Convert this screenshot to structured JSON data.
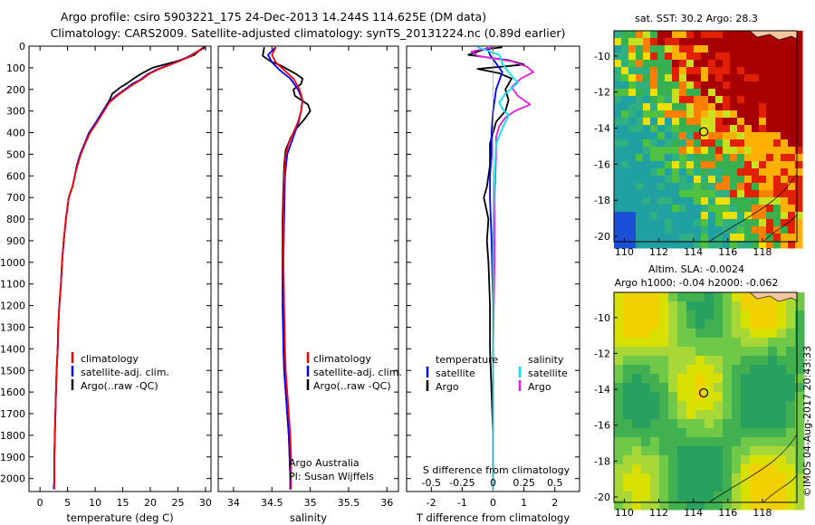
{
  "header": {
    "line1": "Argo profile: csiro 5903221_175 24-Dec-2013 14.244S 114.625E (DM data)",
    "line2": "Climatology: CARS2009. Satellite-adjusted climatology: synTS_20131224.nc (0.89d earlier)"
  },
  "footer": {
    "sidebar_label": "©IMOS 04-Aug-2017 20:43:33"
  },
  "colors": {
    "climatology": "#ff0000",
    "satellite": "#0000ff",
    "argo": "#000000",
    "t_satellite": "#0000ff",
    "t_argo": "#000000",
    "s_satellite": "#00e5ee",
    "s_argo": "#e020e0",
    "map_marker": "#000000"
  },
  "chart_data": [
    {
      "id": "temperature",
      "type": "line",
      "title": "",
      "xlabel": "temperature (deg C)",
      "ylabel": "",
      "xlim": [
        -2,
        31
      ],
      "ylim": [
        2060,
        0
      ],
      "y_inverted": true,
      "x_ticks": [
        0,
        5,
        10,
        15,
        20,
        25,
        30
      ],
      "y_ticks": [
        0,
        100,
        200,
        300,
        400,
        500,
        600,
        700,
        800,
        900,
        1000,
        1100,
        1200,
        1300,
        1400,
        1500,
        1600,
        1700,
        1800,
        1900,
        2000
      ],
      "legend": {
        "placement": "lower-center",
        "entries": [
          "climatology",
          "satellite-adj. clim.",
          "Argo(..raw -QC)"
        ]
      },
      "series": [
        {
          "name": "Argo(..raw -QC)",
          "color_key": "argo",
          "x": [
            30.0,
            28.9,
            28.0,
            26.5,
            24.8,
            22.6,
            20.4,
            18.5,
            17.0,
            15.6,
            14.6,
            13.1,
            12.6,
            11.4,
            10.2,
            8.9,
            8.1,
            7.3,
            6.7,
            6.3,
            5.9,
            5.2,
            4.7,
            4.3,
            4.0,
            3.8,
            3.5,
            3.3,
            3.2,
            3.0,
            2.9,
            2.8,
            2.7,
            2.6,
            2.6,
            2.5
          ],
          "y": [
            5,
            20,
            40,
            55,
            70,
            85,
            100,
            125,
            150,
            175,
            190,
            220,
            250,
            300,
            350,
            400,
            450,
            500,
            550,
            600,
            650,
            700,
            800,
            900,
            1000,
            1100,
            1200,
            1300,
            1400,
            1500,
            1600,
            1700,
            1800,
            1900,
            2000,
            2050
          ]
        },
        {
          "name": "satellite-adj. clim.",
          "color_key": "satellite",
          "x": [
            29.8,
            28.5,
            26.8,
            25.0,
            23.0,
            21.0,
            19.5,
            18.2,
            16.7,
            15.4,
            14.0,
            12.4,
            11.4,
            10.2,
            8.9,
            8.1,
            7.3,
            6.7,
            6.3,
            5.9,
            5.2,
            4.7,
            4.3,
            4.0,
            3.8,
            3.5,
            3.3,
            3.2,
            3.0,
            2.9,
            2.8,
            2.7,
            2.6,
            2.6,
            2.5
          ],
          "y": [
            5,
            25,
            50,
            70,
            90,
            110,
            130,
            155,
            175,
            200,
            225,
            260,
            300,
            350,
            400,
            450,
            500,
            550,
            600,
            650,
            700,
            800,
            900,
            1000,
            1100,
            1200,
            1300,
            1400,
            1500,
            1600,
            1700,
            1800,
            1900,
            2000,
            2050
          ]
        },
        {
          "name": "climatology",
          "color_key": "climatology",
          "x": [
            29.6,
            28.6,
            27.0,
            25.2,
            23.2,
            21.2,
            19.7,
            18.4,
            17.0,
            15.6,
            14.2,
            12.6,
            11.6,
            10.4,
            9.1,
            8.2,
            7.4,
            6.8,
            6.3,
            5.9,
            5.2,
            4.7,
            4.3,
            4.0,
            3.8,
            3.5,
            3.3,
            3.2,
            3.0,
            2.9,
            2.8,
            2.7,
            2.6,
            2.6,
            2.6
          ],
          "y": [
            5,
            25,
            50,
            70,
            90,
            110,
            130,
            155,
            175,
            200,
            225,
            260,
            300,
            350,
            400,
            450,
            500,
            550,
            600,
            650,
            700,
            800,
            900,
            1000,
            1100,
            1200,
            1300,
            1400,
            1500,
            1600,
            1700,
            1800,
            1900,
            2000,
            2050
          ]
        }
      ]
    },
    {
      "id": "salinity",
      "type": "line",
      "title": "",
      "xlabel": "salinity",
      "ylabel": "",
      "xlim": [
        33.8,
        36.15
      ],
      "ylim": [
        2060,
        0
      ],
      "y_inverted": true,
      "x_ticks": [
        34,
        34.5,
        35,
        35.5,
        36
      ],
      "legend": {
        "placement": "lower-right",
        "entries": [
          "climatology",
          "satellite-adj. clim.",
          "Argo(..raw -QC)"
        ]
      },
      "annotations": [
        "Argo Australia",
        "PI: Susan Wijffels"
      ],
      "series": [
        {
          "name": "Argo(..raw -QC)",
          "color_key": "argo",
          "x": [
            34.4,
            34.38,
            34.48,
            34.62,
            34.72,
            34.82,
            34.9,
            34.88,
            34.78,
            34.8,
            34.97,
            35.0,
            34.92,
            34.82,
            34.75,
            34.68,
            34.66,
            34.65,
            34.64,
            34.64,
            34.64,
            34.65,
            34.66,
            34.68,
            34.7,
            34.72,
            34.73,
            34.74,
            34.74
          ],
          "y": [
            5,
            45,
            70,
            90,
            110,
            130,
            150,
            175,
            200,
            230,
            270,
            300,
            340,
            380,
            420,
            480,
            550,
            650,
            800,
            1000,
            1200,
            1400,
            1500,
            1600,
            1700,
            1800,
            1900,
            2000,
            2050
          ]
        },
        {
          "name": "satellite-adj. clim.",
          "color_key": "satellite",
          "x": [
            34.55,
            34.45,
            34.5,
            34.6,
            34.74,
            34.84,
            34.9,
            34.88,
            34.85,
            34.8,
            34.75,
            34.7,
            34.67,
            34.66,
            34.65,
            34.65,
            34.65,
            34.66,
            34.68,
            34.7,
            34.72,
            34.73,
            34.74,
            34.74
          ],
          "y": [
            5,
            40,
            75,
            110,
            150,
            200,
            250,
            300,
            350,
            400,
            450,
            500,
            600,
            800,
            1000,
            1200,
            1400,
            1500,
            1600,
            1700,
            1800,
            1900,
            2000,
            2050
          ]
        },
        {
          "name": "climatology",
          "color_key": "climatology",
          "x": [
            34.55,
            34.5,
            34.55,
            34.66,
            34.78,
            34.86,
            34.9,
            34.88,
            34.84,
            34.78,
            34.72,
            34.68,
            34.66,
            34.65,
            34.65,
            34.66,
            34.67,
            34.68,
            34.7,
            34.72,
            34.74,
            34.75,
            34.75,
            34.75
          ],
          "y": [
            5,
            40,
            75,
            110,
            150,
            200,
            250,
            300,
            350,
            400,
            450,
            500,
            600,
            800,
            1000,
            1200,
            1400,
            1500,
            1600,
            1700,
            1800,
            1900,
            2000,
            2050
          ]
        }
      ]
    },
    {
      "id": "difference",
      "type": "line",
      "title": "",
      "xlabel": "T difference from climatology",
      "xlabel_top": "S difference from climatology",
      "xlim": [
        -2.8,
        2.8
      ],
      "ylim": [
        2060,
        0
      ],
      "y_inverted": true,
      "x_ticks": [
        -2,
        -1,
        0,
        1,
        2
      ],
      "x_ticks_s": [
        "-0.5",
        "-0.25",
        "0",
        "0.25",
        "0.5"
      ],
      "x_ticks_s_values": [
        -2,
        -1,
        0,
        1,
        2
      ],
      "legend": {
        "placement": "lower-center",
        "groups": [
          "temperature",
          "salinity"
        ],
        "entries": [
          "satellite",
          "Argo",
          "satellite",
          "Argo"
        ]
      },
      "series": [
        {
          "name": "temperature Argo",
          "color_key": "t_argo",
          "x": [
            0.3,
            -0.3,
            -0.8,
            0.5,
            1.0,
            -0.5,
            0.2,
            0.6,
            0.4,
            0.5,
            0.4,
            0.1,
            0.0,
            -0.1,
            -0.1,
            -0.1,
            -0.15,
            -0.2,
            -0.3,
            -0.15,
            -0.2,
            -0.15,
            -0.1,
            -0.1,
            -0.05,
            0.0,
            0.0,
            0.0
          ],
          "y": [
            5,
            15,
            40,
            65,
            85,
            105,
            125,
            150,
            200,
            250,
            300,
            350,
            400,
            450,
            500,
            550,
            600,
            650,
            700,
            800,
            900,
            1000,
            1200,
            1400,
            1600,
            1800,
            2000,
            2050
          ]
        },
        {
          "name": "temperature satellite",
          "color_key": "t_satellite",
          "x": [
            -0.2,
            -0.1,
            0.1,
            0.3,
            0.1,
            0.0,
            -0.05,
            -0.05,
            -0.1,
            -0.1,
            -0.05,
            0.0,
            0.0,
            0.0
          ],
          "y": [
            5,
            40,
            80,
            120,
            200,
            300,
            400,
            500,
            600,
            700,
            900,
            1200,
            1600,
            2050
          ]
        },
        {
          "name": "salinity Argo",
          "color_key": "s_argo",
          "x": [
            0.0,
            -0.7,
            -0.5,
            0.6,
            1.1,
            1.3,
            0.9,
            0.6,
            0.8,
            1.2,
            0.7,
            0.4,
            0.2,
            0.1,
            0.1,
            0.05,
            0.05,
            0.0,
            0.0,
            0.0
          ],
          "y": [
            5,
            25,
            45,
            70,
            95,
            120,
            150,
            190,
            230,
            270,
            300,
            330,
            370,
            420,
            500,
            700,
            1000,
            1400,
            1800,
            2050
          ]
        },
        {
          "name": "salinity satellite",
          "color_key": "s_satellite",
          "x": [
            -0.5,
            0.2,
            0.3,
            0.5,
            0.8,
            0.4,
            0.2,
            0.3,
            0.5,
            0.3,
            0.1,
            0.05,
            0.0,
            0.0,
            0.0
          ],
          "y": [
            5,
            40,
            80,
            120,
            170,
            220,
            260,
            290,
            320,
            380,
            450,
            600,
            900,
            1400,
            2050
          ]
        }
      ]
    },
    {
      "id": "sst-map",
      "type": "heatmap",
      "title": "sat. SST: 30.2  Argo: 28.3",
      "xlim": [
        109.4,
        120.0
      ],
      "ylim": [
        -20.3,
        -8.6
      ],
      "x_ticks": [
        110,
        112,
        114,
        116,
        118
      ],
      "y_ticks": [
        -10,
        -12,
        -14,
        -16,
        -18,
        -20
      ],
      "marker": {
        "lon": 114.6,
        "lat": -14.2
      }
    },
    {
      "id": "sla-map",
      "type": "heatmap",
      "title": "Altim. SLA: -0.0024",
      "subtitle": "Argo h1000: -0.04  h2000: -0.062",
      "xlim": [
        109.4,
        120.0
      ],
      "ylim": [
        -20.3,
        -8.6
      ],
      "x_ticks": [
        110,
        112,
        114,
        116,
        118
      ],
      "y_ticks": [
        -10,
        -12,
        -14,
        -16,
        -18,
        -20
      ],
      "marker": {
        "lon": 114.6,
        "lat": -14.2
      }
    }
  ]
}
